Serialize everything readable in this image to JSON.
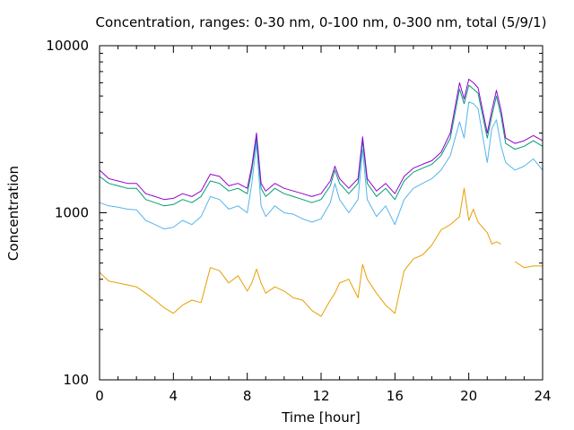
{
  "chart_data": {
    "type": "line",
    "title": "Concentration, ranges: 0-30 nm, 0-100 nm, 0-300 nm, total (5/9/1)",
    "xlabel": "Time [hour]",
    "ylabel": "Concentration",
    "xlim": [
      0,
      24
    ],
    "ylim": [
      100,
      10000
    ],
    "yscale": "log",
    "grid": false,
    "legend": "none",
    "x_ticks": [
      0,
      4,
      8,
      12,
      16,
      20,
      24
    ],
    "x_tick_labels": [
      "0",
      "4",
      "8",
      "12",
      "16",
      "20",
      "24"
    ],
    "y_ticks": [
      100,
      1000,
      10000
    ],
    "y_tick_labels": [
      "100",
      "1000",
      "10000"
    ],
    "x": [
      0,
      0.5,
      1,
      1.5,
      2,
      2.5,
      3,
      3.5,
      4,
      4.5,
      5,
      5.5,
      6,
      6.5,
      7,
      7.5,
      8,
      8.25,
      8.5,
      8.75,
      9,
      9.5,
      10,
      10.5,
      11,
      11.5,
      12,
      12.5,
      12.75,
      13,
      13.5,
      14,
      14.25,
      14.5,
      15,
      15.5,
      16,
      16.5,
      17,
      17.5,
      18,
      18.5,
      19,
      19.5,
      19.75,
      20,
      20.25,
      20.5,
      21,
      21.25,
      21.5,
      21.75,
      22,
      22.5,
      23,
      23.5,
      24
    ],
    "series": [
      {
        "color": "#e6a000",
        "values": [
          440,
          390,
          380,
          370,
          360,
          330,
          300,
          270,
          250,
          280,
          300,
          290,
          470,
          450,
          380,
          420,
          340,
          380,
          460,
          380,
          330,
          360,
          340,
          310,
          300,
          260,
          240,
          300,
          330,
          380,
          400,
          310,
          490,
          400,
          330,
          280,
          250,
          450,
          530,
          560,
          640,
          790,
          850,
          950,
          1400,
          900,
          1050,
          880,
          760,
          650,
          670,
          650,
          null,
          510,
          470,
          480,
          480
        ]
      },
      {
        "color": "#56b4e9",
        "values": [
          1150,
          1100,
          1080,
          1050,
          1040,
          900,
          850,
          800,
          820,
          900,
          850,
          950,
          1250,
          1200,
          1050,
          1100,
          1000,
          1500,
          2600,
          1100,
          950,
          1100,
          1000,
          980,
          920,
          880,
          920,
          1150,
          1500,
          1200,
          1000,
          1200,
          2400,
          1200,
          950,
          1100,
          850,
          1200,
          1400,
          1500,
          1600,
          1800,
          2200,
          3500,
          2800,
          4600,
          4500,
          4200,
          2000,
          3200,
          3600,
          2500,
          2000,
          1800,
          1900,
          2100,
          1800
        ]
      },
      {
        "color": "#009e73",
        "values": [
          1650,
          1500,
          1450,
          1400,
          1400,
          1200,
          1150,
          1100,
          1120,
          1200,
          1150,
          1250,
          1550,
          1500,
          1350,
          1400,
          1300,
          1800,
          2800,
          1400,
          1250,
          1400,
          1300,
          1250,
          1200,
          1150,
          1200,
          1450,
          1800,
          1500,
          1300,
          1500,
          2700,
          1500,
          1250,
          1400,
          1200,
          1550,
          1750,
          1850,
          1950,
          2200,
          2800,
          5500,
          4500,
          5800,
          5500,
          5200,
          2800,
          3800,
          5000,
          3800,
          2600,
          2400,
          2500,
          2700,
          2500
        ]
      },
      {
        "color": "#9400d3",
        "values": [
          1800,
          1600,
          1550,
          1500,
          1500,
          1300,
          1250,
          1200,
          1220,
          1300,
          1250,
          1350,
          1700,
          1650,
          1450,
          1500,
          1400,
          1900,
          3000,
          1500,
          1350,
          1500,
          1400,
          1350,
          1300,
          1250,
          1300,
          1550,
          1900,
          1600,
          1400,
          1600,
          2850,
          1600,
          1350,
          1500,
          1300,
          1650,
          1850,
          1950,
          2050,
          2300,
          3000,
          6000,
          4800,
          6300,
          6000,
          5600,
          3000,
          4100,
          5400,
          4100,
          2800,
          2600,
          2700,
          2900,
          2700
        ]
      }
    ]
  }
}
